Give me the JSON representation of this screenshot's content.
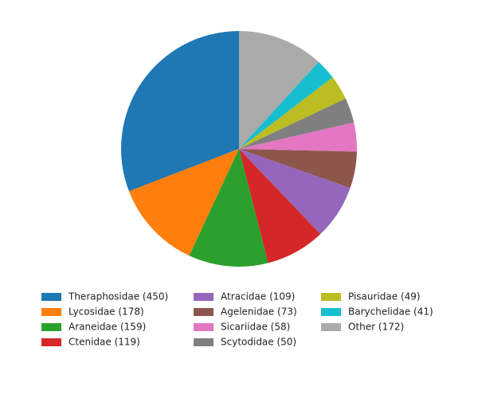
{
  "chart_data": {
    "type": "pie",
    "categories": [
      "Theraphosidae (450)",
      "Lycosidae (178)",
      "Araneidae (159)",
      "Ctenidae (119)",
      "Atracidae (109)",
      "Agelenidae (73)",
      "Sicariidae (58)",
      "Scytodidae (50)",
      "Pisauridae (49)",
      "Barychelidae (41)",
      "Other (172)"
    ],
    "values": [
      450,
      178,
      159,
      119,
      109,
      73,
      58,
      50,
      49,
      41,
      172
    ],
    "colors": [
      "#1f77b4",
      "#ff7f0e",
      "#2ca02c",
      "#d62728",
      "#9467bd",
      "#8c564b",
      "#e377c2",
      "#7f7f7f",
      "#bcbd22",
      "#17becf",
      "#aaaaaa"
    ],
    "start_angle": 90,
    "counterclockwise": true,
    "legend_columns": 3,
    "legend": "bottom"
  }
}
